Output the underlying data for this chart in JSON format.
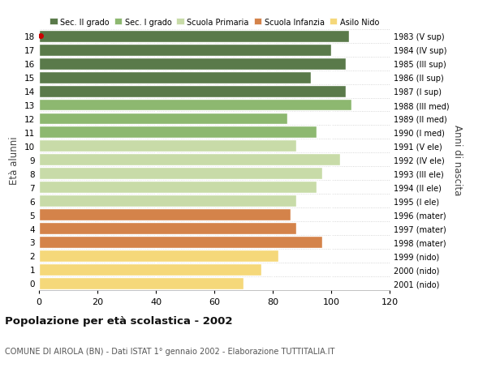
{
  "ages": [
    0,
    1,
    2,
    3,
    4,
    5,
    6,
    7,
    8,
    9,
    10,
    11,
    12,
    13,
    14,
    15,
    16,
    17,
    18
  ],
  "values": [
    70,
    76,
    82,
    97,
    88,
    86,
    88,
    95,
    97,
    103,
    88,
    95,
    85,
    107,
    105,
    93,
    105,
    100,
    106
  ],
  "right_labels": [
    "2001 (nido)",
    "2000 (nido)",
    "1999 (nido)",
    "1998 (mater)",
    "1997 (mater)",
    "1996 (mater)",
    "1995 (I ele)",
    "1994 (II ele)",
    "1993 (III ele)",
    "1992 (IV ele)",
    "1991 (V ele)",
    "1990 (I med)",
    "1989 (II med)",
    "1988 (III med)",
    "1987 (I sup)",
    "1986 (II sup)",
    "1985 (III sup)",
    "1984 (IV sup)",
    "1983 (V sup)"
  ],
  "bar_colors": [
    "#f5d87a",
    "#f5d87a",
    "#f5d87a",
    "#d4834a",
    "#d4834a",
    "#d4834a",
    "#c8dba8",
    "#c8dba8",
    "#c8dba8",
    "#c8dba8",
    "#c8dba8",
    "#8db870",
    "#8db870",
    "#8db870",
    "#5a7a4a",
    "#5a7a4a",
    "#5a7a4a",
    "#5a7a4a",
    "#5a7a4a"
  ],
  "legend_labels": [
    "Sec. II grado",
    "Sec. I grado",
    "Scuola Primaria",
    "Scuola Infanzia",
    "Asilo Nido"
  ],
  "legend_colors": [
    "#5a7a4a",
    "#8db870",
    "#c8dba8",
    "#d4834a",
    "#f5d87a"
  ],
  "ylabel": "Età alunni",
  "right_ylabel": "Anni di nascita",
  "title": "Popolazione per età scolastica - 2002",
  "subtitle": "COMUNE DI AIROLA (BN) - Dati ISTAT 1° gennaio 2002 - Elaborazione TUTTITALIA.IT",
  "xlim": [
    0,
    120
  ],
  "bg_color": "#ffffff",
  "dot_color": "#cc0000",
  "dot_age": 18
}
